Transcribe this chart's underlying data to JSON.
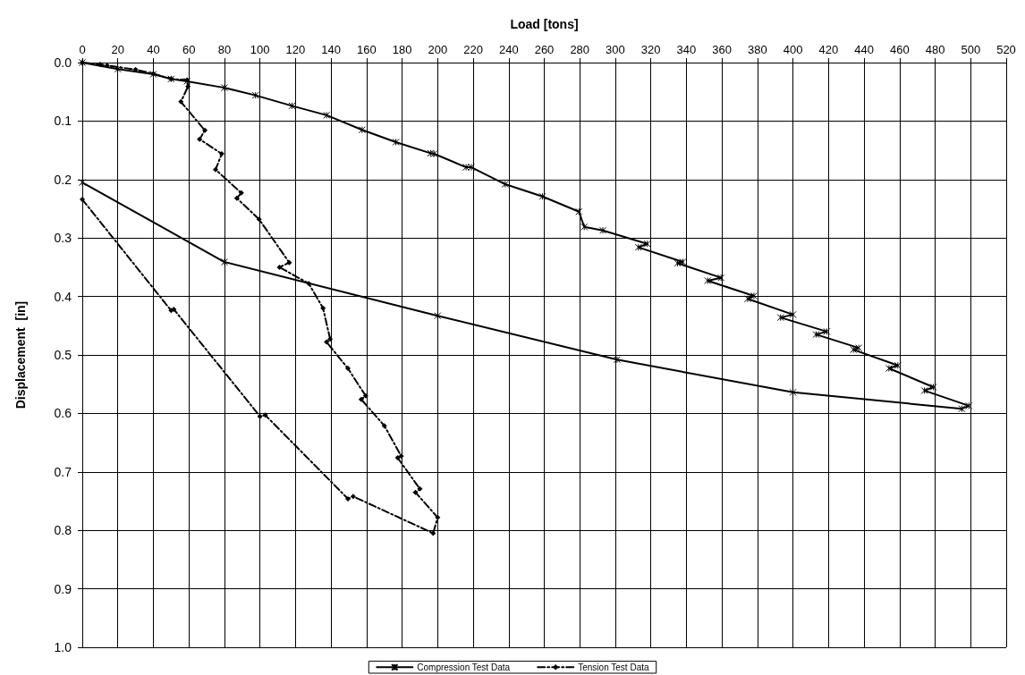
{
  "chart_data": {
    "type": "line",
    "xlabel": "Load [tons]",
    "ylabel": "Displacement  [in]",
    "xlim": [
      0,
      520
    ],
    "xticks": [
      0,
      20,
      40,
      60,
      80,
      100,
      120,
      140,
      160,
      180,
      200,
      220,
      240,
      260,
      280,
      300,
      320,
      340,
      360,
      380,
      400,
      420,
      440,
      460,
      480,
      500,
      520
    ],
    "ylim": [
      1,
      0
    ],
    "yticks": [
      {
        "value": 0,
        "label": "0.0"
      },
      0.1,
      0.2,
      0.3,
      0.4,
      0.5,
      0.6,
      0.7,
      0.8,
      0.9,
      {
        "value": 1,
        "label": "1.0"
      }
    ],
    "grid": true,
    "legend": "bottom",
    "series": [
      {
        "name": "Compression Test Data",
        "color": "#000000",
        "marker": "cross",
        "line_style": "solid",
        "x": [
          0,
          20,
          40,
          50,
          59,
          80,
          97.5,
          118,
          137.5,
          157.5,
          176.5,
          196,
          198,
          216,
          219,
          238,
          259,
          279.5,
          282.5,
          293,
          318,
          313,
          338,
          335,
          359.5,
          352,
          378,
          374.5,
          400,
          393,
          419,
          413,
          437,
          434,
          459,
          454,
          479,
          474,
          499,
          495,
          400,
          301,
          200,
          80,
          0
        ],
        "values": [
          0,
          0.011,
          0.02,
          0.028,
          0.032,
          0.043,
          0.056,
          0.074,
          0.09,
          0.115,
          0.136,
          0.155,
          0.156,
          0.179,
          0.179,
          0.208,
          0.229,
          0.255,
          0.281,
          0.287,
          0.31,
          0.316,
          0.341,
          0.343,
          0.368,
          0.373,
          0.399,
          0.404,
          0.431,
          0.436,
          0.46,
          0.465,
          0.488,
          0.491,
          0.518,
          0.523,
          0.555,
          0.561,
          0.587,
          0.592,
          0.564,
          0.508,
          0.433,
          0.341,
          0.205
        ]
      },
      {
        "name": "Tension Test Data",
        "color": "#000000",
        "marker": "diamond",
        "line_style": "dashed",
        "x": [
          0,
          10,
          14,
          30,
          40,
          50,
          59,
          59.5,
          55.5,
          69,
          66,
          78.5,
          75,
          89.5,
          87,
          99.5,
          116.5,
          111,
          127.5,
          135.5,
          139.5,
          137.5,
          149.5,
          159.5,
          157,
          170,
          179.5,
          177.5,
          190,
          187.5,
          200,
          197.5,
          152.5,
          149.5,
          103,
          100,
          51.5,
          50,
          0
        ],
        "values": [
          0,
          0.003,
          0.005,
          0.012,
          0.019,
          0.028,
          0.03,
          0.041,
          0.067,
          0.116,
          0.131,
          0.156,
          0.183,
          0.223,
          0.232,
          0.268,
          0.342,
          0.35,
          0.378,
          0.42,
          0.473,
          0.478,
          0.523,
          0.57,
          0.576,
          0.621,
          0.673,
          0.676,
          0.729,
          0.735,
          0.778,
          0.805,
          0.742,
          0.746,
          0.603,
          0.605,
          0.422,
          0.424,
          0.234
        ]
      }
    ]
  }
}
